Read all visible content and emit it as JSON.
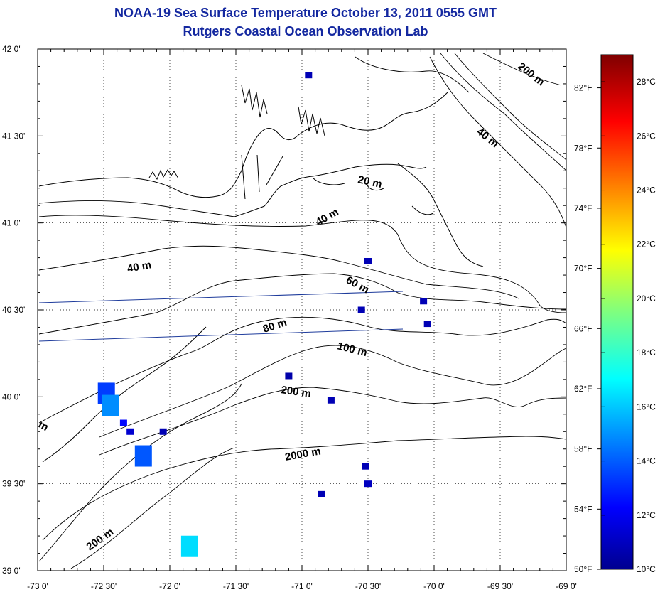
{
  "title": {
    "line1": "NOAA-19 Sea Surface Temperature October 13, 2011 0555 GMT",
    "line2": "Rutgers Coastal Ocean Observation Lab"
  },
  "map": {
    "lon_range": [
      -73.0,
      -69.0
    ],
    "lat_range": [
      39.0,
      42.0
    ],
    "x_ticks": [
      "-73 0'",
      "-72 30'",
      "-72 0'",
      "-71 30'",
      "-71 0'",
      "-70 30'",
      "-70 0'",
      "-69 30'",
      "-69 0'"
    ],
    "y_ticks": [
      "42 0'",
      "41 30'",
      "41 0'",
      "40 30'",
      "40 0'",
      "39 30'",
      "39 0'"
    ],
    "grid": "dotted",
    "contour_labels": [
      "200 m",
      "40 m",
      "20 m",
      "40 m",
      "40 m",
      "60 m",
      "80 m",
      "100 m",
      "200 m",
      "2000 m",
      "200 m",
      "m"
    ],
    "land_color": "#ffffff",
    "coastline_color": "#000000",
    "track_color": "#1f3c9c"
  },
  "colorbar": {
    "celsius_labels": [
      "28°C",
      "26°C",
      "24°C",
      "22°C",
      "20°C",
      "18°C",
      "16°C",
      "14°C",
      "12°C",
      "10°C"
    ],
    "fahrenheit_labels": [
      "82°F",
      "78°F",
      "74°F",
      "70°F",
      "66°F",
      "62°F",
      "58°F",
      "54°F",
      "50°F"
    ],
    "colormap": "jet",
    "range_c": [
      10,
      29
    ]
  },
  "sst_patches": [
    {
      "lon": -72.48,
      "lat": 40.02,
      "temp_c": 13.5
    },
    {
      "lon": -72.45,
      "lat": 39.95,
      "temp_c": 15.0
    },
    {
      "lon": -72.35,
      "lat": 39.85,
      "temp_c": 12.5
    },
    {
      "lon": -72.3,
      "lat": 39.8,
      "temp_c": 11.5
    },
    {
      "lon": -72.05,
      "lat": 39.8,
      "temp_c": 11.0
    },
    {
      "lon": -72.2,
      "lat": 39.66,
      "temp_c": 14.0
    },
    {
      "lon": -71.1,
      "lat": 40.12,
      "temp_c": 10.8
    },
    {
      "lon": -70.95,
      "lat": 41.85,
      "temp_c": 11.0
    },
    {
      "lon": -70.5,
      "lat": 40.78,
      "temp_c": 11.0
    },
    {
      "lon": -70.55,
      "lat": 40.5,
      "temp_c": 11.0
    },
    {
      "lon": -70.78,
      "lat": 39.98,
      "temp_c": 11.0
    },
    {
      "lon": -70.52,
      "lat": 39.6,
      "temp_c": 11.0
    },
    {
      "lon": -70.5,
      "lat": 39.5,
      "temp_c": 11.2
    },
    {
      "lon": -70.85,
      "lat": 39.44,
      "temp_c": 11.0
    },
    {
      "lon": -70.08,
      "lat": 40.55,
      "temp_c": 11.0
    },
    {
      "lon": -70.05,
      "lat": 40.42,
      "temp_c": 11.0
    },
    {
      "lon": -71.85,
      "lat": 39.14,
      "temp_c": 16.5
    }
  ]
}
